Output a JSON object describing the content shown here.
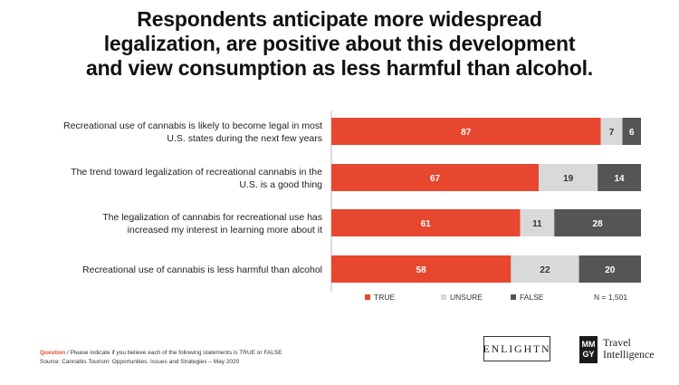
{
  "title_lines": [
    "Respondents anticipate more widespread",
    "legalization, are positive about this development",
    "and view consumption as less harmful than alcohol."
  ],
  "chart_data": {
    "type": "bar",
    "orientation": "horizontal",
    "stacked": true,
    "categories": [
      [
        "Recreational use of cannabis is likely to become legal in most",
        "U.S. states during the next few years"
      ],
      [
        "The trend toward legalization of recreational cannabis in the",
        "U.S. is a good thing"
      ],
      [
        "The legalization of cannabis for recreational use has",
        "increased my interest in learning more about it"
      ],
      [
        "Recreational use of cannabis is less harmful than alcohol"
      ]
    ],
    "series": [
      {
        "name": "TRUE",
        "color": "#e8472f",
        "values": [
          87,
          67,
          61,
          58
        ]
      },
      {
        "name": "UNSURE",
        "color": "#d9d9d9",
        "values": [
          7,
          19,
          11,
          22
        ]
      },
      {
        "name": "FALSE",
        "color": "#555555",
        "values": [
          6,
          14,
          28,
          20
        ]
      }
    ],
    "xlim": [
      0,
      100
    ],
    "legend_position": "bottom",
    "sample_note": "N = 1,501"
  },
  "footer": {
    "question_label": "Question",
    "question_text": " / Please indicate if you believe each of the following statements is TRUE or FALSE",
    "source": "Source: Cannabis Tourism: Opportunities, Issues and Strategies – May 2020"
  },
  "logos": {
    "enlightn": "ENLIGHTN",
    "mmgy_line1": "MM",
    "mmgy_line2": "GY",
    "travel_intelligence_line1": "Travel",
    "travel_intelligence_line2": "Intelligence"
  }
}
